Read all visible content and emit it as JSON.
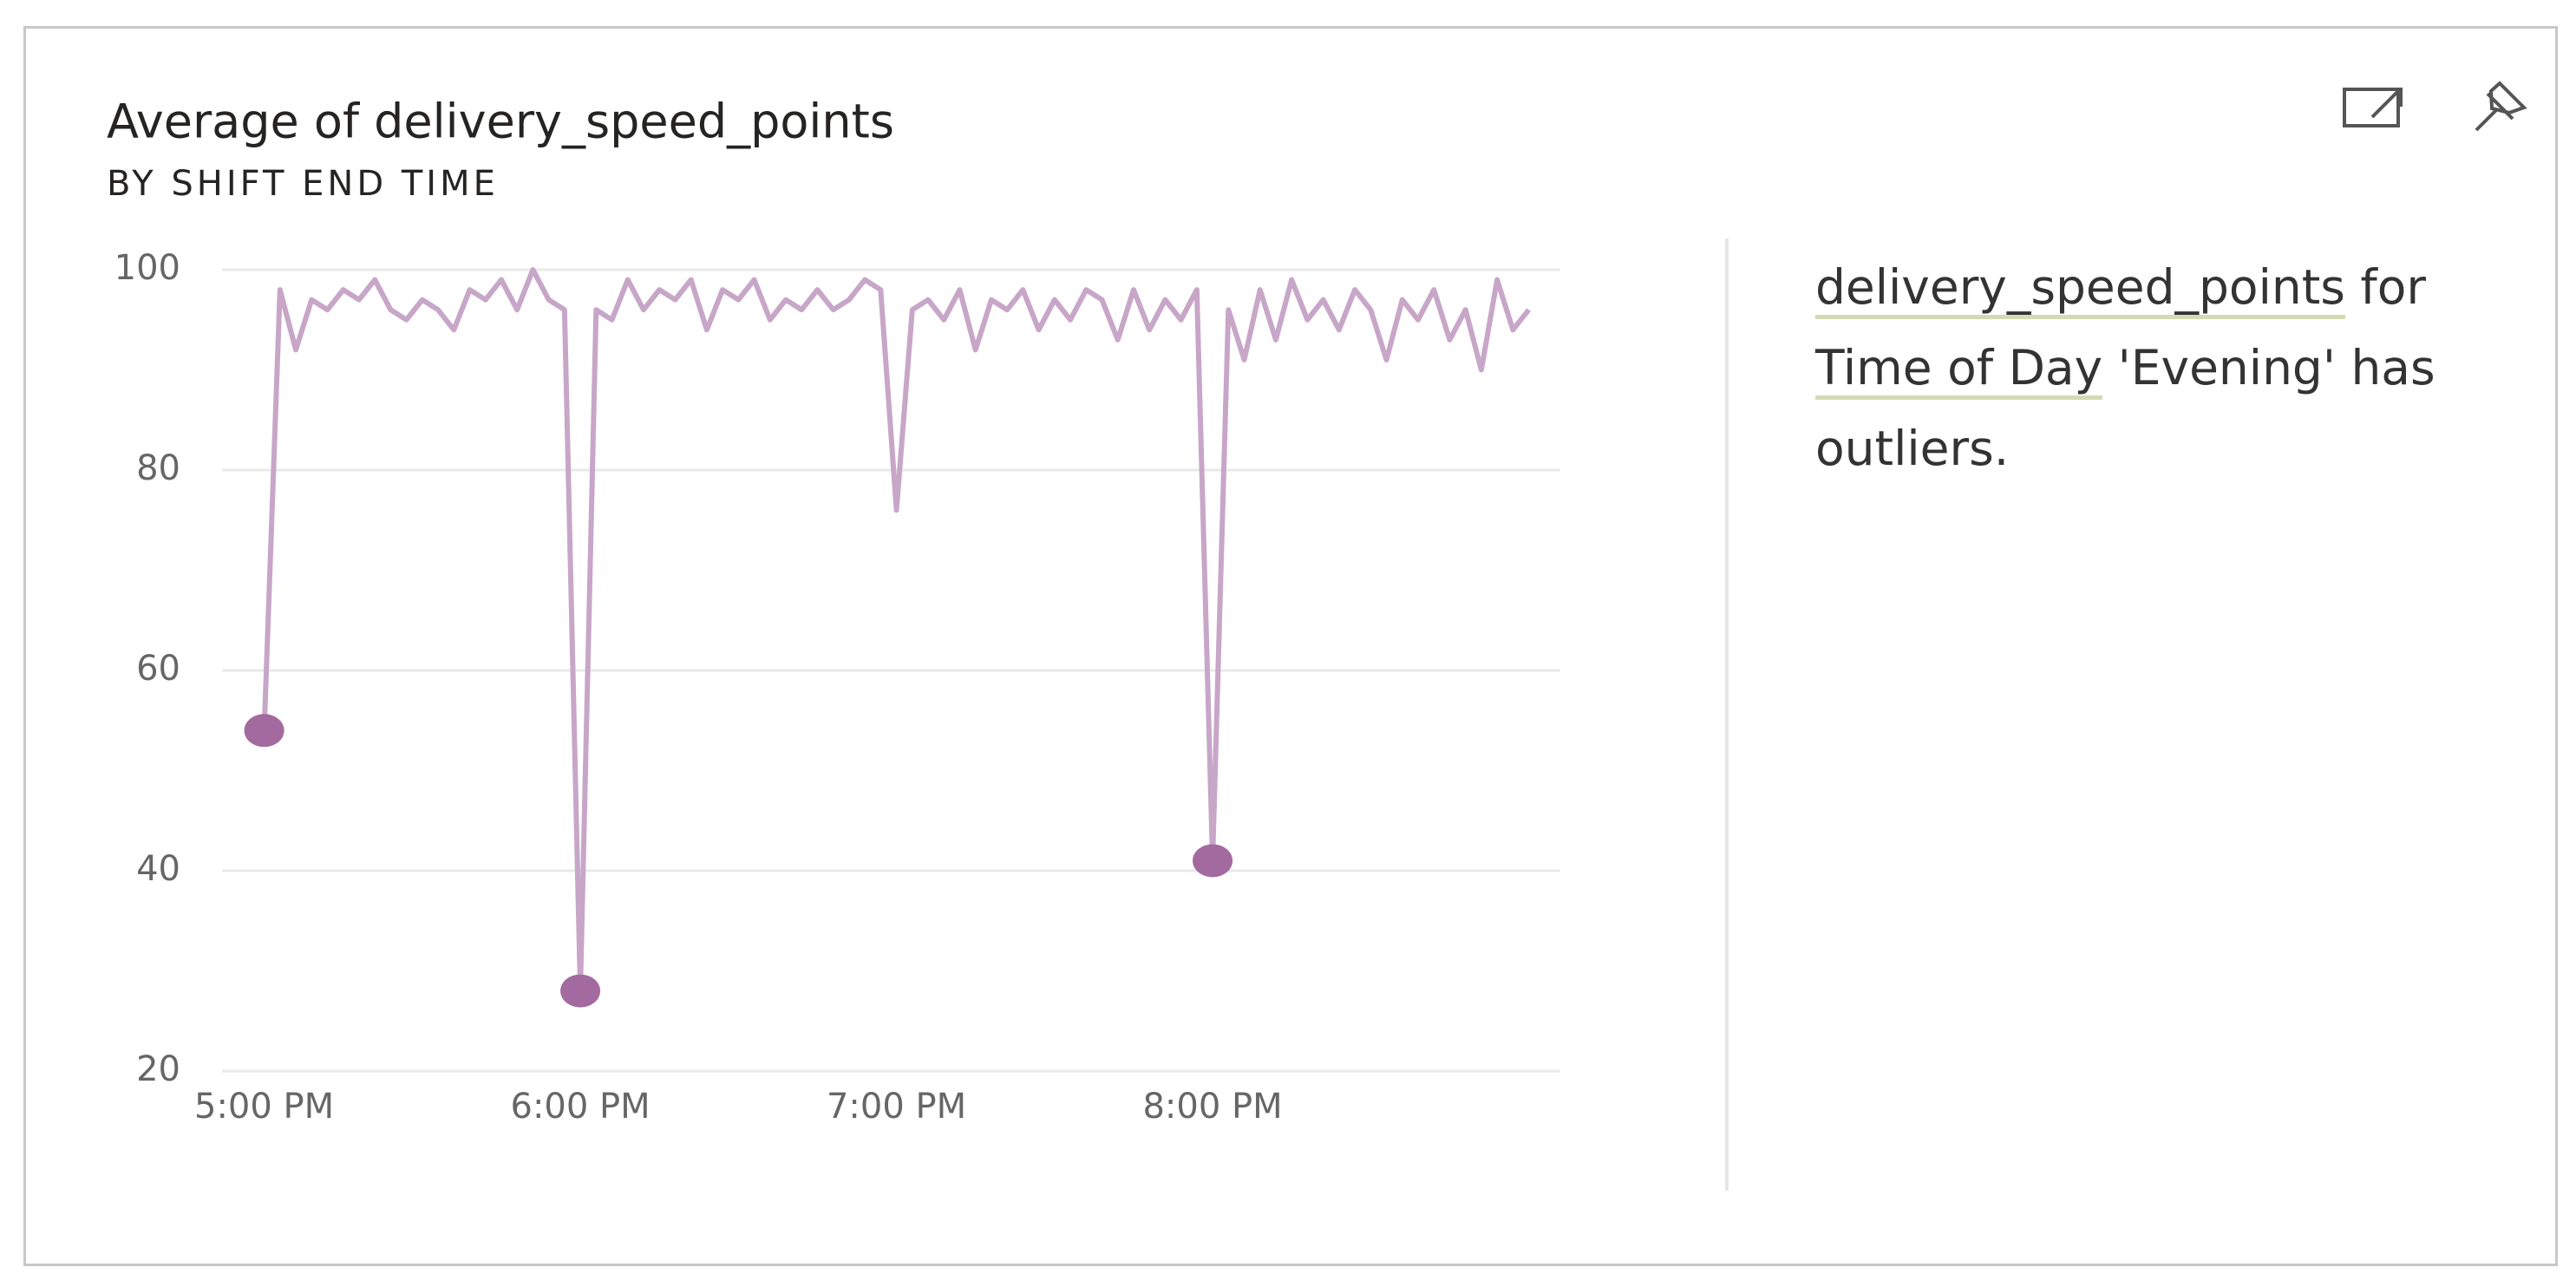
{
  "chart_data": {
    "type": "line",
    "title": "Average of delivery_speed_points",
    "subtitle": "BY SHIFT END TIME",
    "x": [
      "5:00 PM",
      "5:03 PM",
      "5:06 PM",
      "5:09 PM",
      "5:12 PM",
      "5:15 PM",
      "5:18 PM",
      "5:21 PM",
      "5:24 PM",
      "5:27 PM",
      "5:30 PM",
      "5:33 PM",
      "5:36 PM",
      "5:39 PM",
      "5:42 PM",
      "5:45 PM",
      "5:48 PM",
      "5:51 PM",
      "5:54 PM",
      "5:57 PM",
      "6:00 PM",
      "6:03 PM",
      "6:06 PM",
      "6:09 PM",
      "6:12 PM",
      "6:15 PM",
      "6:18 PM",
      "6:21 PM",
      "6:24 PM",
      "6:27 PM",
      "6:30 PM",
      "6:33 PM",
      "6:36 PM",
      "6:39 PM",
      "6:42 PM",
      "6:45 PM",
      "6:48 PM",
      "6:51 PM",
      "6:54 PM",
      "6:57 PM",
      "7:00 PM",
      "7:03 PM",
      "7:06 PM",
      "7:09 PM",
      "7:12 PM",
      "7:15 PM",
      "7:18 PM",
      "7:21 PM",
      "7:24 PM",
      "7:27 PM",
      "7:30 PM",
      "7:33 PM",
      "7:36 PM",
      "7:39 PM",
      "7:42 PM",
      "7:45 PM",
      "7:48 PM",
      "7:51 PM",
      "7:54 PM",
      "7:57 PM",
      "8:00 PM",
      "8:03 PM",
      "8:06 PM",
      "8:09 PM",
      "8:12 PM",
      "8:15 PM",
      "8:18 PM",
      "8:21 PM",
      "8:24 PM",
      "8:27 PM",
      "8:30 PM",
      "8:33 PM",
      "8:36 PM",
      "8:39 PM",
      "8:42 PM",
      "8:45 PM",
      "8:48 PM",
      "8:51 PM",
      "8:54 PM",
      "8:57 PM",
      "9:00 PM"
    ],
    "values": [
      54,
      98,
      92,
      97,
      96,
      98,
      97,
      99,
      96,
      95,
      97,
      96,
      94,
      98,
      97,
      99,
      96,
      100,
      97,
      96,
      28,
      96,
      95,
      99,
      96,
      98,
      97,
      99,
      94,
      98,
      97,
      99,
      95,
      97,
      96,
      98,
      96,
      97,
      99,
      98,
      76,
      96,
      97,
      95,
      98,
      92,
      97,
      96,
      98,
      94,
      97,
      95,
      98,
      97,
      93,
      98,
      94,
      97,
      95,
      98,
      41,
      96,
      91,
      98,
      93,
      99,
      95,
      97,
      94,
      98,
      96,
      91,
      97,
      95,
      98,
      93,
      96,
      90,
      99,
      94,
      96
    ],
    "color": "#c7a6c8",
    "markers": [
      0,
      20,
      60
    ],
    "marker_color": "#a26a9e",
    "xlim": [
      "4:52 PM",
      "9:06 PM"
    ],
    "xticks": [
      "5:00 PM",
      "6:00 PM",
      "7:00 PM",
      "8:00 PM"
    ],
    "ylim": [
      20,
      100
    ],
    "yticks": [
      20,
      40,
      60,
      80,
      100
    ],
    "grid": true
  },
  "insight": {
    "parts": [
      {
        "text": "delivery_speed_points",
        "underline": true
      },
      {
        "text": "for"
      },
      {
        "text": "Time of Day",
        "underline": true
      },
      {
        "text": "'Evening' has outliers."
      }
    ]
  }
}
